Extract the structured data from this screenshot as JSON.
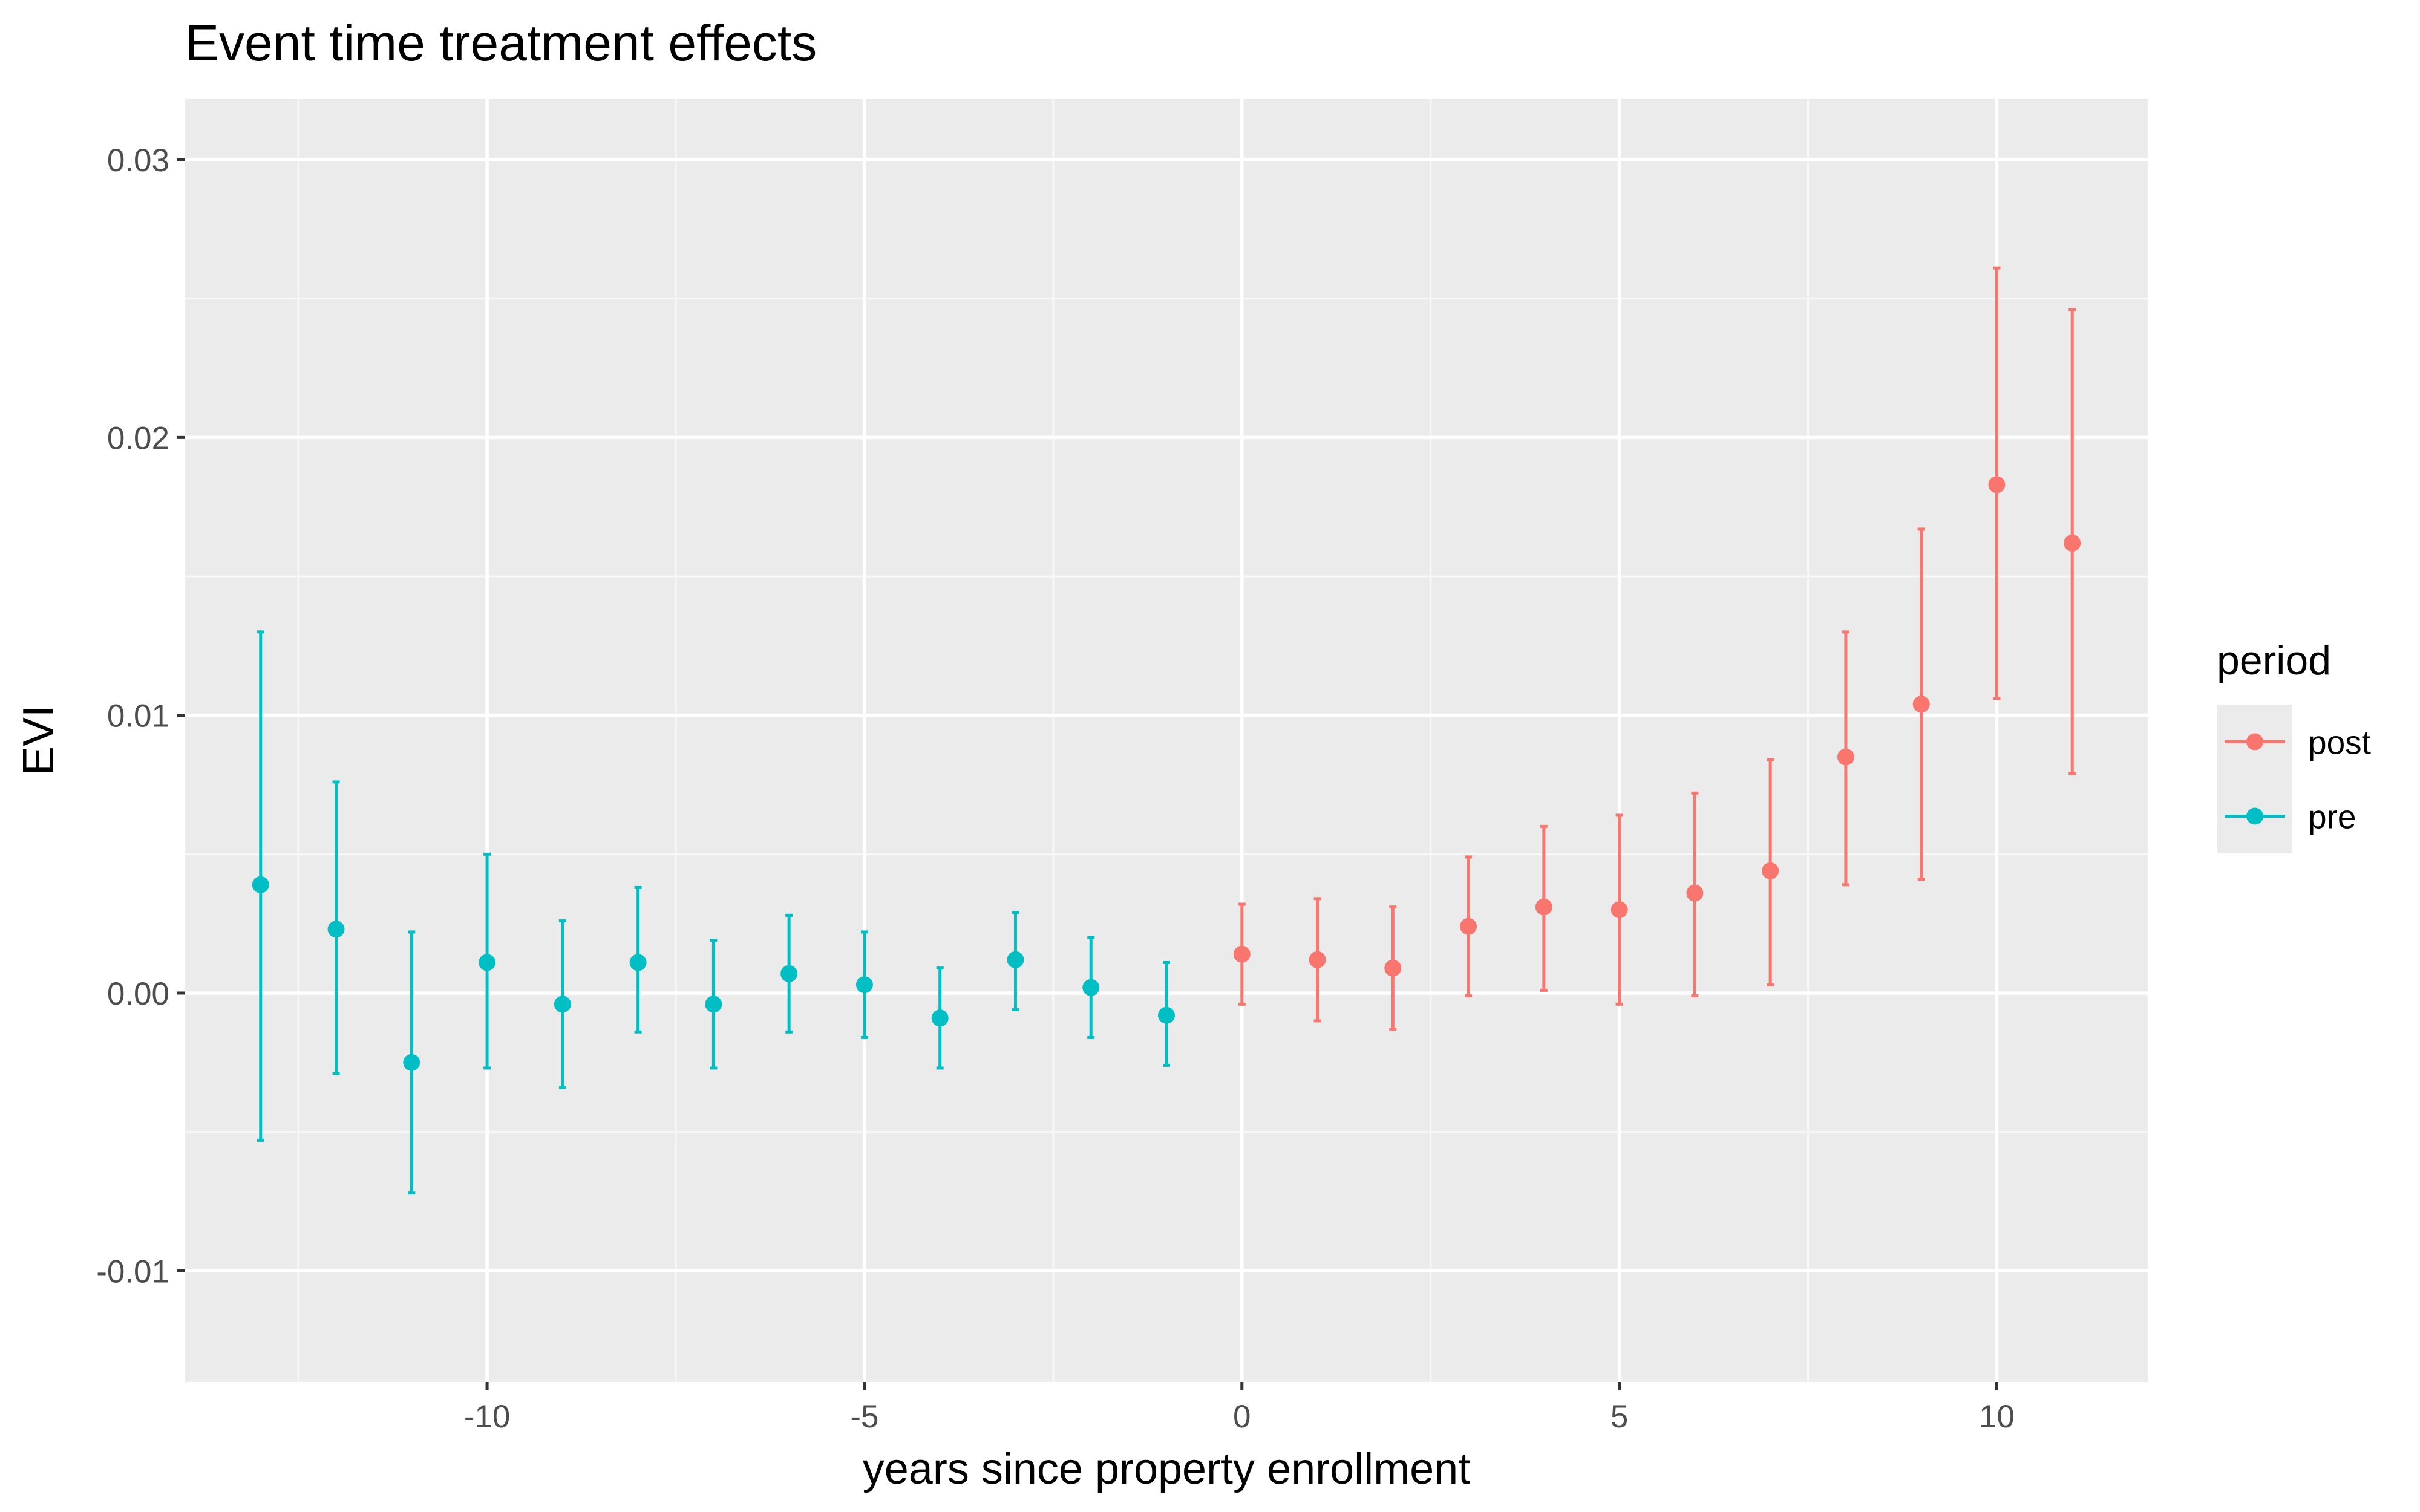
{
  "chart_data": {
    "type": "scatter",
    "title": "Event time treatment effects",
    "xlabel": "years since property enrollment",
    "ylabel": "EVI",
    "xlim": [
      -14.0,
      12.0
    ],
    "ylim": [
      -0.014,
      0.0322
    ],
    "x_ticks": [
      -10,
      -5,
      0,
      5,
      10
    ],
    "x_tick_labels": [
      "-10",
      "-5",
      "0",
      "5",
      "10"
    ],
    "y_ticks": [
      -0.01,
      0.0,
      0.01,
      0.02,
      0.03
    ],
    "y_tick_labels": [
      "-0.01",
      "0.00",
      "0.01",
      "0.02",
      "0.03"
    ],
    "grid": true,
    "legend": {
      "title": "period",
      "placement": "right",
      "entries": [
        {
          "label": "post",
          "color": "#F8766D"
        },
        {
          "label": "pre",
          "color": "#00BFC4"
        }
      ]
    },
    "series": [
      {
        "name": "pre",
        "color": "#00BFC4",
        "points": [
          {
            "x": -13,
            "y": 0.0039,
            "lo": -0.0053,
            "hi": 0.013
          },
          {
            "x": -12,
            "y": 0.0023,
            "lo": -0.0029,
            "hi": 0.0076
          },
          {
            "x": -11,
            "y": -0.0025,
            "lo": -0.0072,
            "hi": 0.0022
          },
          {
            "x": -10,
            "y": 0.0011,
            "lo": -0.0027,
            "hi": 0.005
          },
          {
            "x": -9,
            "y": -0.0004,
            "lo": -0.0034,
            "hi": 0.0026
          },
          {
            "x": -8,
            "y": 0.0011,
            "lo": -0.0014,
            "hi": 0.0038
          },
          {
            "x": -7,
            "y": -0.0004,
            "lo": -0.0027,
            "hi": 0.0019
          },
          {
            "x": -6,
            "y": 0.0007,
            "lo": -0.0014,
            "hi": 0.0028
          },
          {
            "x": -5,
            "y": 0.0003,
            "lo": -0.0016,
            "hi": 0.0022
          },
          {
            "x": -4,
            "y": -0.0009,
            "lo": -0.0027,
            "hi": 0.0009
          },
          {
            "x": -3,
            "y": 0.0012,
            "lo": -0.0006,
            "hi": 0.0029
          },
          {
            "x": -2,
            "y": 0.0002,
            "lo": -0.0016,
            "hi": 0.002
          },
          {
            "x": -1,
            "y": -0.0008,
            "lo": -0.0026,
            "hi": 0.0011
          }
        ]
      },
      {
        "name": "post",
        "color": "#F8766D",
        "points": [
          {
            "x": 0,
            "y": 0.0014,
            "lo": -0.0004,
            "hi": 0.0032
          },
          {
            "x": 1,
            "y": 0.0012,
            "lo": -0.001,
            "hi": 0.0034
          },
          {
            "x": 2,
            "y": 0.0009,
            "lo": -0.0013,
            "hi": 0.0031
          },
          {
            "x": 3,
            "y": 0.0024,
            "lo": -0.0001,
            "hi": 0.0049
          },
          {
            "x": 4,
            "y": 0.0031,
            "lo": 0.0001,
            "hi": 0.006
          },
          {
            "x": 5,
            "y": 0.003,
            "lo": -0.0004,
            "hi": 0.0064
          },
          {
            "x": 6,
            "y": 0.0036,
            "lo": -0.0001,
            "hi": 0.0072
          },
          {
            "x": 7,
            "y": 0.0044,
            "lo": 0.0003,
            "hi": 0.0084
          },
          {
            "x": 8,
            "y": 0.0085,
            "lo": 0.0039,
            "hi": 0.013
          },
          {
            "x": 9,
            "y": 0.0104,
            "lo": 0.0041,
            "hi": 0.0167
          },
          {
            "x": 10,
            "y": 0.0183,
            "lo": 0.0106,
            "hi": 0.0261
          },
          {
            "x": 11,
            "y": 0.0162,
            "lo": 0.0079,
            "hi": 0.0246
          }
        ]
      }
    ],
    "colors": {
      "panel_background": "#EBEBEB",
      "grid_major": "#FFFFFF",
      "grid_minor": "#F7F7F7",
      "tick_label": "#4D4D4D",
      "tick_mark": "#333333"
    }
  }
}
